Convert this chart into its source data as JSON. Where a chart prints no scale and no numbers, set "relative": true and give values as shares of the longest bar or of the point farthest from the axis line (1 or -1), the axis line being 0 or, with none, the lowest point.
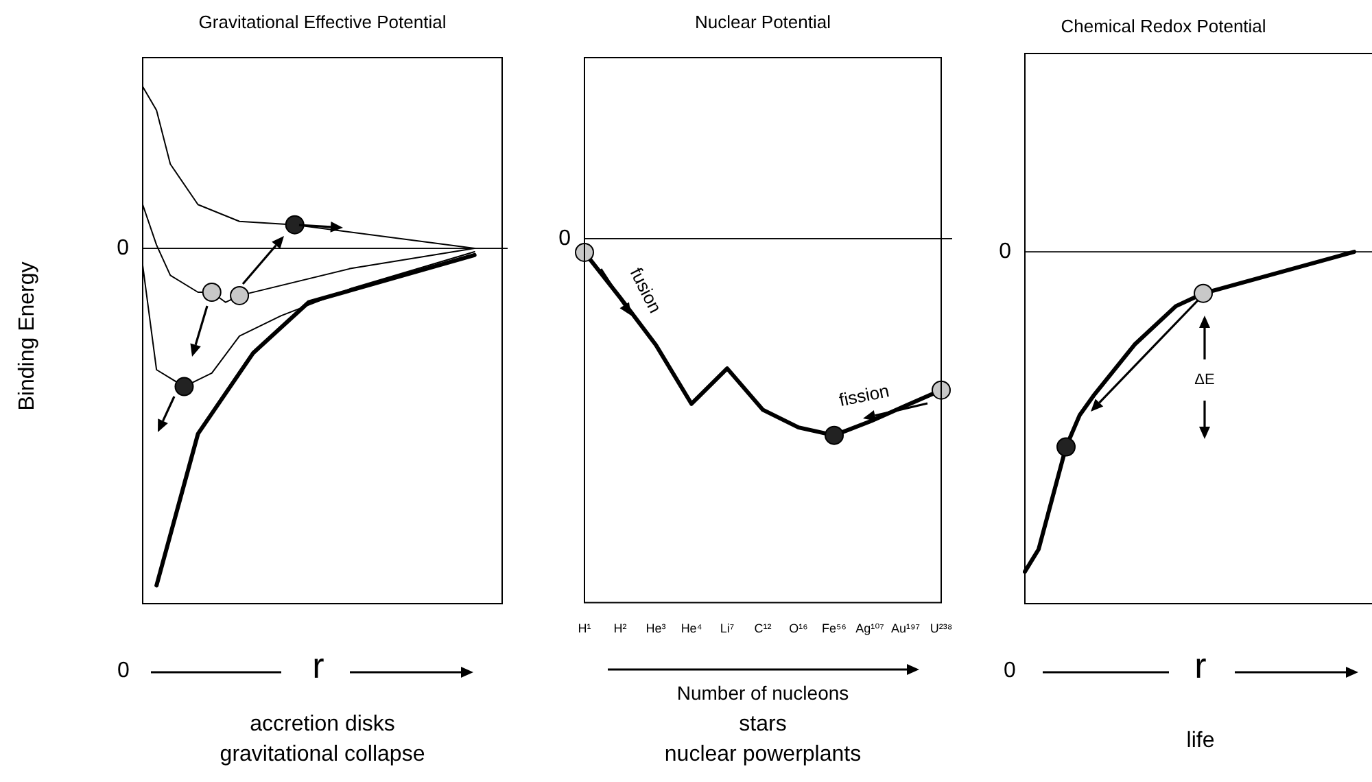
{
  "chart_data": [
    {
      "type": "line",
      "title": "Gravitational Effective Potential",
      "ylabel": "Binding Energy",
      "xlabel": "r",
      "relative": true,
      "categories": [
        null,
        null,
        null,
        null,
        null,
        null,
        null,
        null,
        null,
        null,
        null,
        null,
        null,
        null,
        null,
        null,
        null,
        null,
        null,
        null,
        null,
        null,
        null,
        null,
        null,
        null,
        null
      ],
      "series": [
        {
          "color": "#000000",
          "values": [
            0.48,
            0.41,
            0.25,
            null,
            0.13,
            null,
            null,
            0.08,
            null,
            null,
            null,
            0.07,
            null,
            null,
            null,
            null,
            null,
            null,
            null,
            null,
            null,
            null,
            null,
            null,
            0,
            null,
            null
          ],
          "colors": [
            null,
            null,
            null,
            null,
            null,
            null,
            null,
            null,
            null,
            null,
            null,
            "#222222",
            null,
            null,
            null,
            null,
            null,
            null,
            null,
            null,
            null,
            null,
            null,
            null,
            null,
            null,
            null
          ]
        },
        {
          "color": "#000000",
          "values": [
            0.13,
            0.01,
            -0.08,
            null,
            -0.13,
            -0.13,
            -0.16,
            -0.14,
            null,
            null,
            null,
            null,
            null,
            null,
            null,
            -0.06,
            null,
            null,
            null,
            null,
            null,
            null,
            null,
            null,
            0,
            null,
            null
          ],
          "colors": [
            null,
            null,
            null,
            null,
            null,
            "#c8c8c8",
            null,
            "#c8c8c8",
            null,
            null,
            null,
            null,
            null,
            null,
            null,
            null,
            null,
            null,
            null,
            null,
            null,
            null,
            null,
            null,
            null,
            null,
            null
          ]
        },
        {
          "color": "#000000",
          "values": [
            -0.05,
            -0.36,
            null,
            -0.41,
            null,
            -0.37,
            null,
            -0.26,
            null,
            null,
            -0.2,
            null,
            null,
            null,
            null,
            -0.12,
            null,
            null,
            null,
            null,
            null,
            null,
            null,
            null,
            -0.01,
            null,
            null
          ],
          "colors": [
            null,
            null,
            null,
            "#222222",
            null,
            null,
            null,
            null,
            null,
            null,
            null,
            null,
            null,
            null,
            null,
            null,
            null,
            null,
            null,
            null,
            null,
            null,
            null,
            null,
            null,
            null,
            null
          ]
        },
        {
          "color": "#000000",
          "values": [
            null,
            -1,
            null,
            null,
            -0.55,
            null,
            null,
            null,
            -0.31,
            null,
            null,
            null,
            -0.16,
            null,
            null,
            null,
            null,
            null,
            null,
            null,
            null,
            null,
            null,
            null,
            -0.02,
            null,
            null
          ]
        }
      ],
      "ref_lines": [
        {
          "axis": "y",
          "value": 0,
          "label": "0",
          "color": "#000000"
        }
      ],
      "annotations": [
        "0",
        "accretion disks\ngravitational collapse"
      ]
    },
    {
      "type": "line",
      "title": "Nuclear Potential",
      "xlabel": "Number of nucleons",
      "relative": true,
      "categories": [
        "H¹",
        "H²",
        "He³",
        "He⁴",
        "Li⁷",
        "C¹²",
        "O¹⁶",
        "Fe⁵⁶",
        "Ag¹⁰⁷",
        "Au¹⁹⁷",
        "U²³⁸"
      ],
      "series": [
        {
          "color": "#000000",
          "values": [
            -0.07,
            -0.3,
            -0.54,
            -0.84,
            -0.66,
            -0.87,
            -0.96,
            -1,
            -0.93,
            -0.85,
            -0.77
          ],
          "colors": [
            "#c8c8c8",
            null,
            null,
            null,
            null,
            null,
            null,
            "#222222",
            null,
            null,
            "#c8c8c8"
          ]
        }
      ],
      "ref_lines": [
        {
          "axis": "y",
          "value": 0,
          "label": "0",
          "color": "#000000"
        }
      ],
      "annotations": [
        "fusion",
        "fission",
        "stars\nnuclear powerplants"
      ]
    },
    {
      "type": "line",
      "title": "Chemical Redox Potential",
      "xlabel": "r",
      "relative": true,
      "categories": [
        null,
        null,
        null,
        null,
        null,
        null,
        null,
        null,
        null,
        null,
        null,
        null,
        null,
        null,
        null,
        null,
        null,
        null,
        null,
        null,
        null,
        null,
        null,
        null,
        null,
        null
      ],
      "series": [
        {
          "color": "#000000",
          "values": [
            -1,
            -0.93,
            null,
            -0.61,
            -0.51,
            -0.45,
            null,
            null,
            -0.29,
            null,
            null,
            -0.17,
            null,
            -0.13,
            null,
            null,
            null,
            null,
            null,
            null,
            null,
            null,
            null,
            null,
            0,
            null
          ],
          "colors": [
            null,
            null,
            null,
            "#222222",
            null,
            null,
            null,
            null,
            null,
            null,
            null,
            null,
            null,
            "#c8c8c8",
            null,
            null,
            null,
            null,
            null,
            null,
            null,
            null,
            null,
            null,
            null,
            null
          ]
        }
      ],
      "ref_lines": [
        {
          "axis": "y",
          "value": 0,
          "label": "0",
          "color": "#000000"
        }
      ],
      "annotations": [
        "0",
        "ΔE",
        "life"
      ]
    }
  ]
}
